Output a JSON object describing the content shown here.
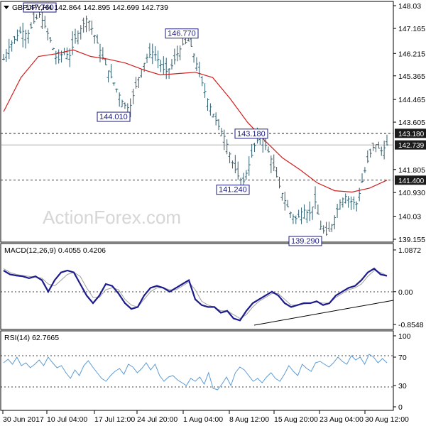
{
  "colors": {
    "candles": "#2f5f6f",
    "sma": "#d11f1f",
    "macd": "#1c1c8c",
    "macd_signal": "#a0a0a0",
    "rsi": "#5b9bd5",
    "price_tag": "#1b1b1b",
    "watermark": "#d6d6d6"
  },
  "watermark": "ActionForex.com",
  "chart_data": [
    {
      "type": "candlestick",
      "header": "GBPJPY,H4  142.864 142.895 142.699 142.739",
      "ylim": [
        139.155,
        148.03
      ],
      "y_ticks": [
        "148.03",
        "147.165",
        "146.215",
        "145.365",
        "144.465",
        "143.605",
        "142.739",
        "141.805",
        "140.930",
        "140.03",
        "139.155"
      ],
      "x_ticks": [
        "30 Jun 2017",
        "10 Jul 04:00",
        "17 Jul 12:00",
        "24 Jul 20:00",
        "1 Aug 04:00",
        "8 Aug 12:00",
        "15 Aug 20:00",
        "23 Aug 04:00",
        "30 Aug 12:00"
      ],
      "current_price": 142.739,
      "levels": [
        {
          "label": "143.180",
          "value": 143.18
        },
        {
          "label": "141.400",
          "value": 141.4
        }
      ],
      "annotations": [
        {
          "label": "147.760",
          "value": 147.76
        },
        {
          "label": "144.010",
          "value": 144.01
        },
        {
          "label": "146.770",
          "value": 146.77
        },
        {
          "label": "143.180",
          "value": 143.18
        },
        {
          "label": "141.240",
          "value": 141.24
        },
        {
          "label": "139.290",
          "value": 139.29
        }
      ],
      "close_path": [
        146.0,
        146.5,
        146.8,
        147.1,
        146.9,
        147.4,
        147.7,
        147.2,
        146.6,
        145.9,
        146.3,
        146.1,
        146.8,
        147.2,
        147.6,
        147.0,
        146.4,
        145.8,
        145.3,
        144.8,
        144.3,
        144.1,
        144.9,
        145.6,
        146.1,
        146.3,
        145.9,
        145.5,
        145.7,
        146.2,
        146.6,
        146.7,
        146.0,
        145.2,
        144.5,
        143.9,
        143.4,
        143.0,
        142.2,
        141.6,
        141.3,
        142.0,
        142.8,
        143.1,
        142.6,
        142.0,
        141.2,
        140.6,
        140.1,
        139.9,
        140.3,
        140.1,
        140.6,
        139.6,
        139.3,
        139.8,
        140.5,
        140.8,
        140.6,
        140.5,
        141.5,
        142.3,
        142.8,
        142.5,
        142.74
      ],
      "sma_path": [
        144.0,
        145.3,
        146.1,
        146.2,
        146.35,
        146.1,
        146.0,
        145.85,
        145.6,
        145.4,
        145.45,
        145.5,
        145.3,
        144.5,
        143.6,
        142.9,
        142.25,
        141.8,
        141.3,
        141.0,
        140.95,
        141.1,
        141.4
      ]
    },
    {
      "type": "line",
      "header": "MACD(12,26,9) 0.4055 0.4206",
      "ylim": [
        -0.8548,
        1.0872
      ],
      "y_ticks": [
        "1.0872",
        "0.00",
        "-0.8548"
      ],
      "series": [
        {
          "name": "MACD",
          "values": [
            0.55,
            0.45,
            0.42,
            0.4,
            0.35,
            0.4,
            0.3,
            0.0,
            0.3,
            0.5,
            0.55,
            0.5,
            0.2,
            -0.1,
            -0.3,
            -0.1,
            0.2,
            0.15,
            -0.05,
            -0.3,
            -0.45,
            -0.4,
            -0.1,
            0.1,
            0.15,
            0.1,
            0.0,
            0.1,
            0.2,
            0.3,
            -0.2,
            -0.35,
            -0.4,
            -0.4,
            -0.55,
            -0.5,
            -0.7,
            -0.75,
            -0.5,
            -0.3,
            -0.2,
            -0.1,
            0.0,
            -0.1,
            -0.3,
            -0.4,
            -0.35,
            -0.3,
            -0.3,
            -0.25,
            -0.35,
            -0.3,
            -0.1,
            0.0,
            0.1,
            0.15,
            0.3,
            0.5,
            0.6,
            0.45,
            0.41
          ]
        },
        {
          "name": "Signal",
          "values": [
            0.6,
            0.5,
            0.45,
            0.42,
            0.4,
            0.38,
            0.35,
            0.2,
            0.15,
            0.3,
            0.45,
            0.5,
            0.4,
            0.1,
            -0.15,
            -0.15,
            0.05,
            0.1,
            0.05,
            -0.2,
            -0.35,
            -0.4,
            -0.2,
            0.0,
            0.1,
            0.1,
            0.05,
            0.05,
            0.15,
            0.25,
            0.05,
            -0.25,
            -0.35,
            -0.4,
            -0.5,
            -0.5,
            -0.6,
            -0.7,
            -0.6,
            -0.4,
            -0.25,
            -0.15,
            -0.05,
            -0.05,
            -0.2,
            -0.35,
            -0.35,
            -0.32,
            -0.3,
            -0.27,
            -0.3,
            -0.3,
            -0.15,
            -0.05,
            0.05,
            0.1,
            0.2,
            0.4,
            0.55,
            0.5,
            0.42
          ]
        }
      ],
      "trendline": true
    },
    {
      "type": "line",
      "header": "RSI(14) 62.7665",
      "ylim": [
        0,
        100
      ],
      "y_ticks": [
        "100",
        "70",
        "30",
        "0"
      ],
      "levels": [
        70,
        30
      ],
      "series": [
        {
          "name": "RSI",
          "values": [
            62,
            67,
            60,
            70,
            58,
            62,
            55,
            60,
            66,
            58,
            70,
            62,
            55,
            58,
            48,
            40,
            52,
            44,
            58,
            65,
            56,
            48,
            40,
            36,
            44,
            50,
            54,
            46,
            60,
            56,
            48,
            54,
            62,
            52,
            60,
            44,
            36,
            42,
            44,
            38,
            34,
            30,
            40,
            36,
            42,
            32,
            48,
            26,
            24,
            32,
            42,
            30,
            48,
            56,
            52,
            44,
            36,
            40,
            34,
            42,
            48,
            40,
            36,
            46,
            58,
            50,
            44,
            60,
            54,
            50,
            62,
            64,
            60,
            56,
            62,
            70,
            64,
            60,
            72,
            66,
            70,
            60,
            74,
            70,
            62,
            68,
            62
          ]
        }
      ]
    }
  ]
}
